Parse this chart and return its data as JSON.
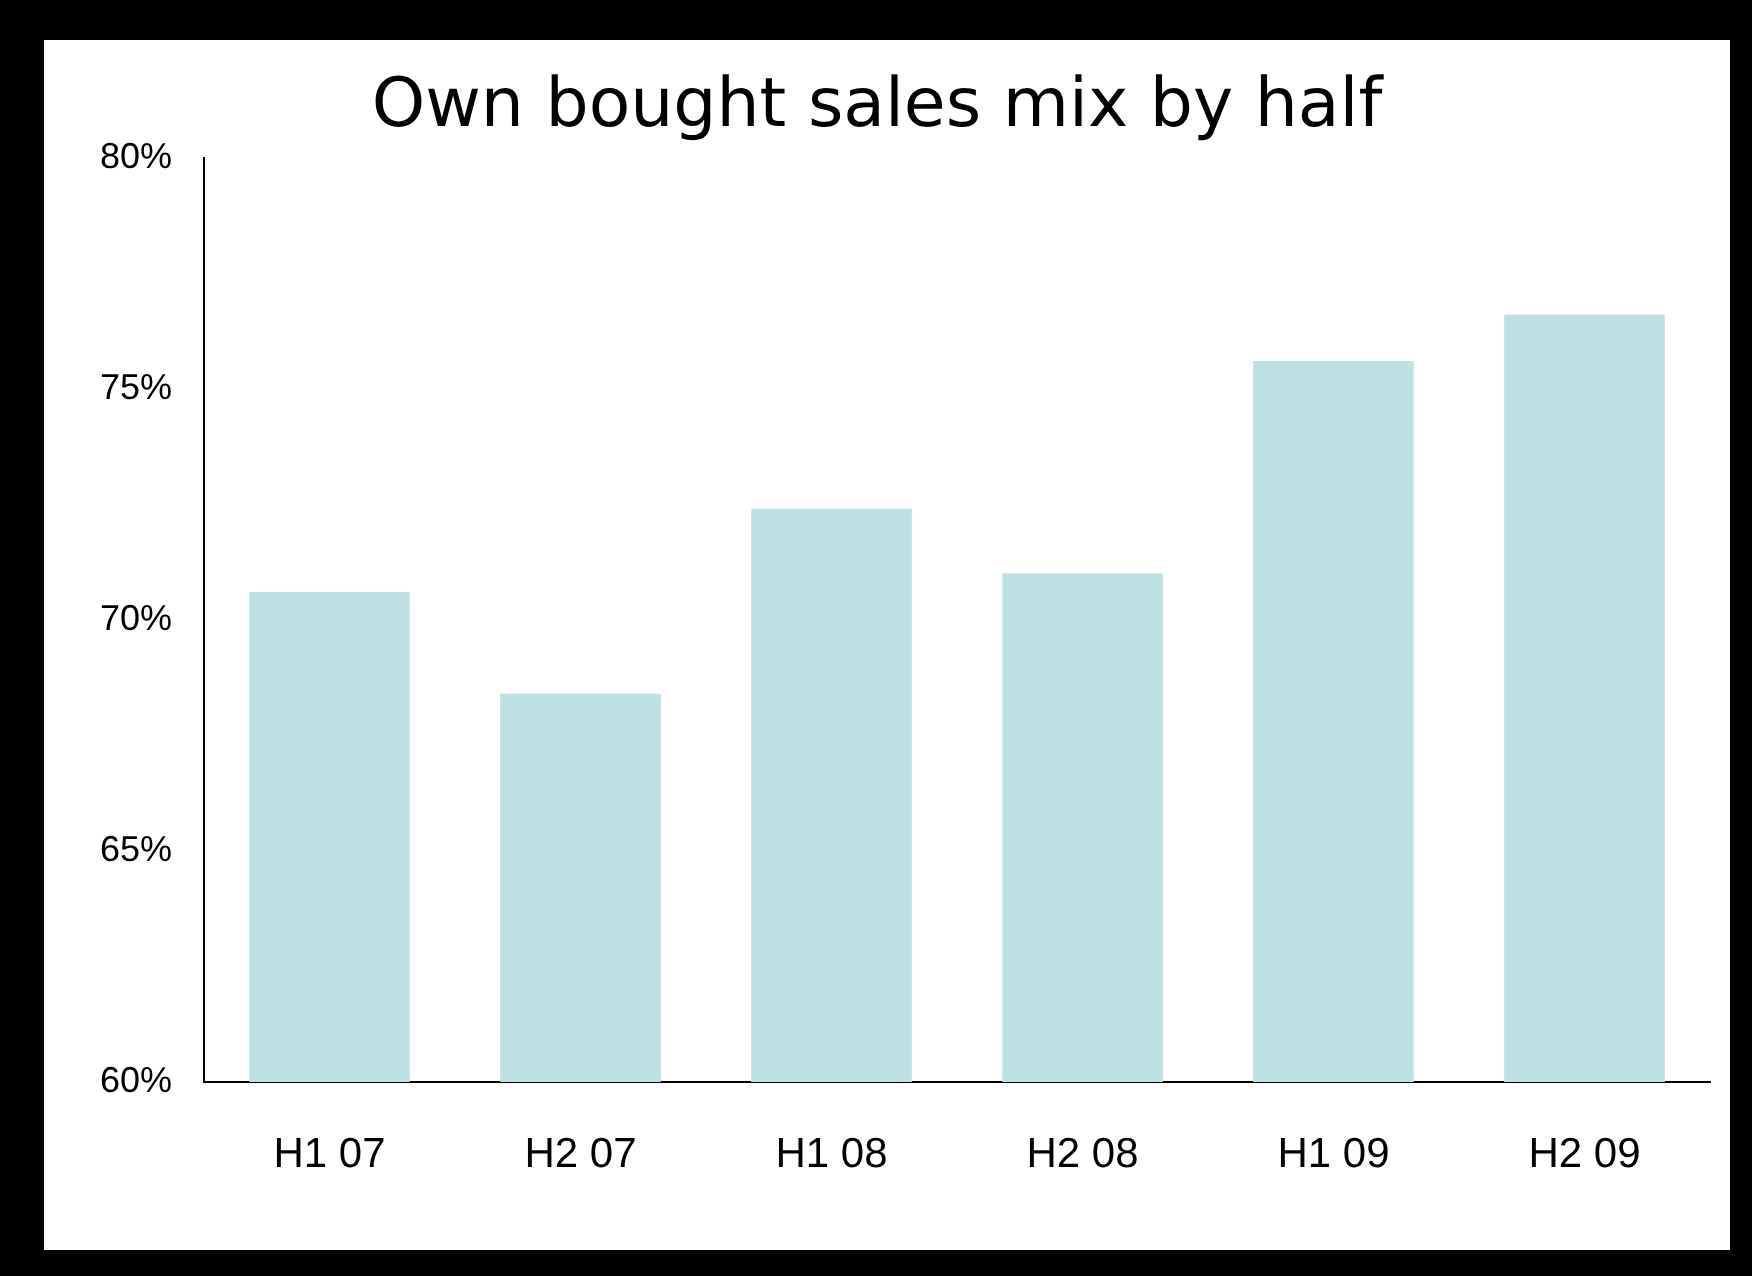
{
  "chart_data": {
    "type": "bar",
    "title": "Own bought sales mix by half",
    "categories": [
      "H1 07",
      "H2 07",
      "H1 08",
      "H2 08",
      "H1 09",
      "H2 09"
    ],
    "values": [
      70.6,
      68.4,
      72.4,
      71.0,
      75.6,
      76.6
    ],
    "color": "#bde0e2",
    "ylim": [
      60,
      80
    ],
    "yticks": [
      {
        "value": 60,
        "label": "60%"
      },
      {
        "value": 65,
        "label": "65%"
      },
      {
        "value": 70,
        "label": "70%"
      },
      {
        "value": 75,
        "label": "75%"
      },
      {
        "value": 80,
        "label": "80%"
      }
    ],
    "grid": false,
    "legend": false
  }
}
